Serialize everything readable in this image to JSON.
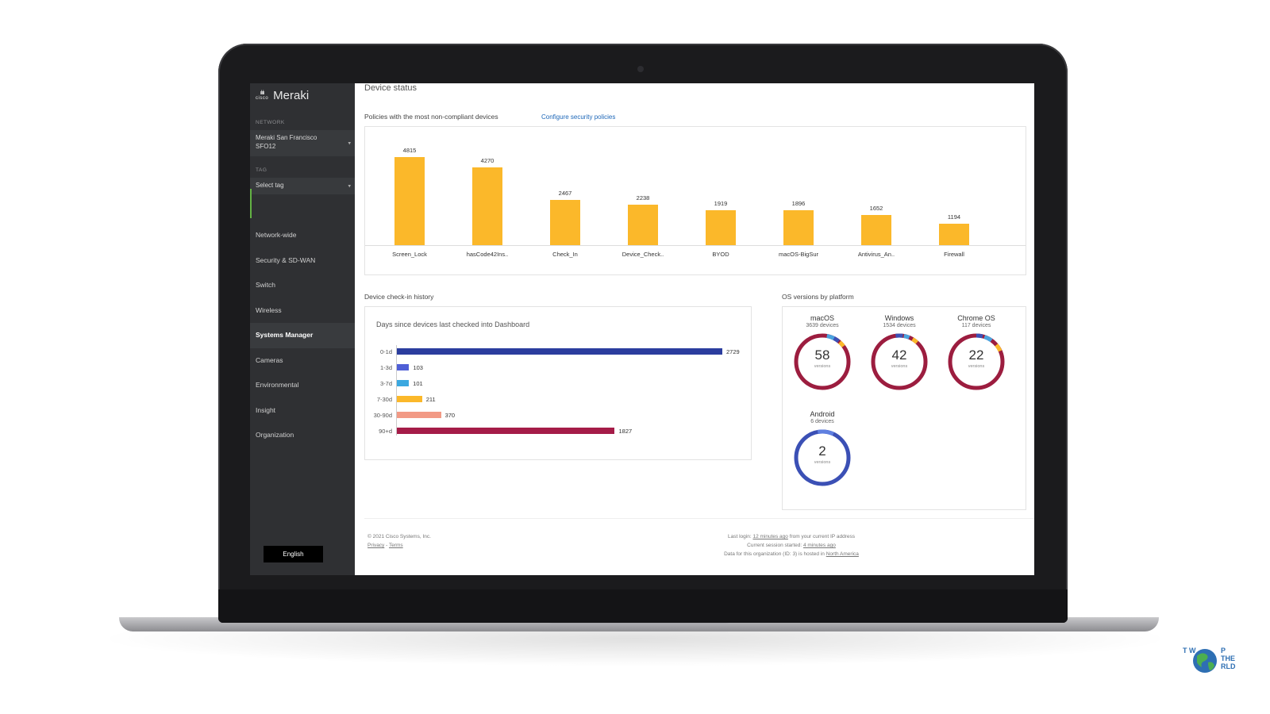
{
  "sidebar": {
    "logo_cisco": "cisco",
    "logo_name": "Meraki",
    "network_label": "NETWORK",
    "network_value_line1": "Meraki San Francisco",
    "network_value_line2": "SFO12",
    "tag_label": "TAG",
    "tag_placeholder": "Select tag",
    "nav": [
      {
        "label": "Network-wide"
      },
      {
        "label": "Security & SD-WAN"
      },
      {
        "label": "Switch"
      },
      {
        "label": "Wireless"
      },
      {
        "label": "Systems Manager"
      },
      {
        "label": "Cameras"
      },
      {
        "label": "Environmental"
      },
      {
        "label": "Insight"
      },
      {
        "label": "Organization"
      }
    ],
    "language_button": "English"
  },
  "main": {
    "page_title": "Device status",
    "policies_title": "Policies with the most non-compliant devices",
    "configure_link": "Configure security policies",
    "history_title": "Device check-in history",
    "history_subtitle": "Days since devices last checked into Dashboard",
    "os_title": "OS versions by platform",
    "os_platforms": [
      {
        "name": "macOS",
        "count": "3639 devices",
        "versions": "58",
        "versions_label": "versions"
      },
      {
        "name": "Windows",
        "count": "1534 devices",
        "versions": "42",
        "versions_label": "versions"
      },
      {
        "name": "Chrome OS",
        "count": "117 devices",
        "versions": "22",
        "versions_label": "versions"
      },
      {
        "name": "Android",
        "count": "6 devices",
        "versions": "2",
        "versions_label": "versions"
      }
    ]
  },
  "footer": {
    "copyright": "© 2021 Cisco Systems, Inc.",
    "privacy": "Privacy",
    "separator": " - ",
    "terms": "Terms",
    "last_login_prefix": "Last login: ",
    "last_login_link": "12 minutes ago",
    "last_login_suffix": " from your current IP address",
    "session_prefix": "Current session started: ",
    "session_link": "4 minutes ago",
    "data_prefix": "Data for this organization (ID: 3) is hosted in ",
    "data_link": "North America"
  },
  "watermark": {
    "line_left": "T W",
    "line_right": "P THE RLD"
  },
  "colors": {
    "sidebar_bg": "#2f3033",
    "policy_bar": "#fbb82a",
    "link": "#1d67b8",
    "ring_main": "#9c1d3f",
    "ring_android": "#3b50b5"
  },
  "chart_data": [
    {
      "type": "bar",
      "categories": [
        "Screen_Lock",
        "hasCode42Ins..",
        "Check_In",
        "Device_Check..",
        "BYOD",
        "macOS-BigSur",
        "Antivirus_An..",
        "Firewall"
      ],
      "values": [
        4815,
        4270,
        2467,
        2238,
        1919,
        1896,
        1652,
        1194
      ],
      "title": "Policies with the most non-compliant devices",
      "ylim": [
        0,
        5000
      ]
    },
    {
      "type": "bar",
      "orientation": "horizontal",
      "categories": [
        "0-1d",
        "1-3d",
        "3-7d",
        "7-30d",
        "30-90d",
        "90+d"
      ],
      "values": [
        2729,
        103,
        101,
        211,
        370,
        1827
      ],
      "colors": [
        "#2b3d9e",
        "#4f5fd6",
        "#3ba8e0",
        "#fbb82a",
        "#f29a85",
        "#a51c48"
      ],
      "title": "Days since devices last checked into Dashboard",
      "xlim": [
        0,
        2729
      ]
    }
  ]
}
